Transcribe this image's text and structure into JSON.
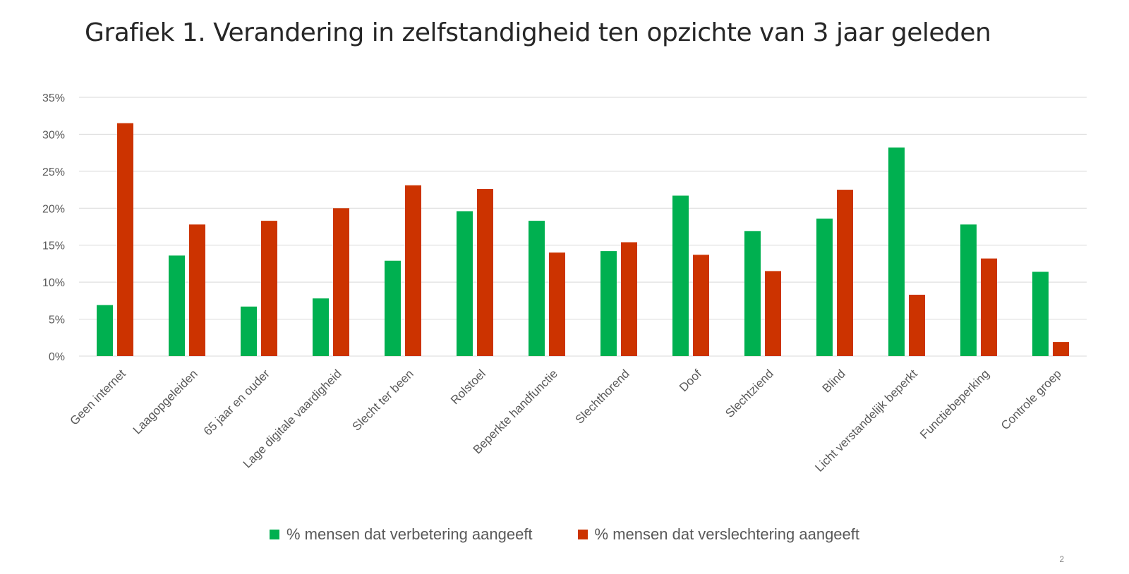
{
  "slide": {
    "page_number": "2"
  },
  "colors": {
    "improvement": "#00B050",
    "deterioration": "#CC3300",
    "gridline": "#D9D9D9"
  },
  "chart_data": {
    "type": "bar",
    "title": "Grafiek 1. Verandering in zelfstandigheid ten opzichte van 3 jaar geleden",
    "xlabel": "",
    "ylabel": "",
    "ylim": [
      0,
      35
    ],
    "yticks": [
      "0%",
      "5%",
      "10%",
      "15%",
      "20%",
      "25%",
      "30%",
      "35%"
    ],
    "y_tick_values": [
      0,
      5,
      10,
      15,
      20,
      25,
      30,
      35
    ],
    "grid": true,
    "legend_position": "bottom",
    "categories": [
      "Geen internet",
      "Laagopgeleiden",
      "65 jaar en ouder",
      "Lage digitale vaardigheid",
      "Slecht ter been",
      "Rolstoel",
      "Beperkte handfunctie",
      "Slechthorend",
      "Doof",
      "Slechtziend",
      "Blind",
      "Licht verstandelijk beperkt",
      "Functiebeperking",
      "Controle groep"
    ],
    "series": [
      {
        "name": "% mensen dat verbetering aangeeft",
        "color": "#00B050",
        "values": [
          6.9,
          13.6,
          6.7,
          7.8,
          12.9,
          19.6,
          18.3,
          14.2,
          21.7,
          16.9,
          18.6,
          28.2,
          17.8,
          11.4
        ]
      },
      {
        "name": "% mensen dat verslechtering aangeeft",
        "color": "#CC3300",
        "values": [
          31.5,
          17.8,
          18.3,
          20.0,
          23.1,
          22.6,
          14.0,
          15.4,
          13.7,
          11.5,
          22.5,
          8.3,
          13.2,
          1.9
        ]
      }
    ]
  }
}
